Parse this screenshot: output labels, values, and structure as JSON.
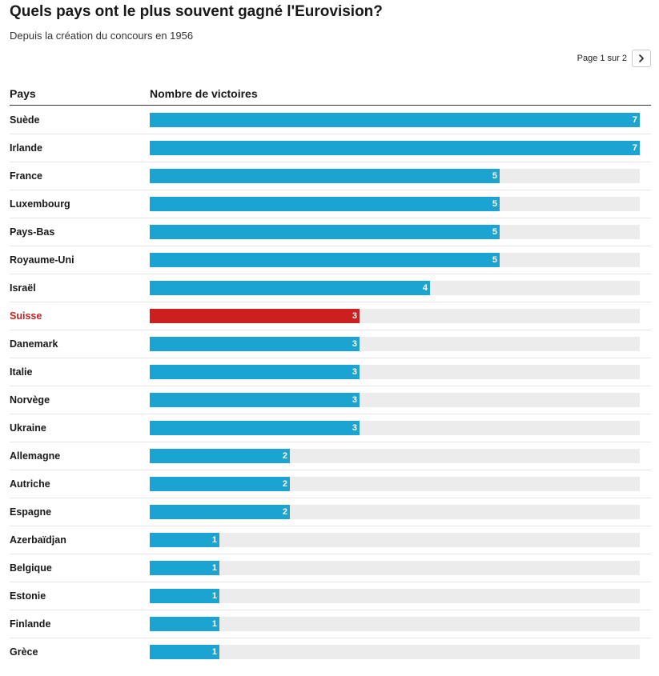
{
  "header": {
    "title": "Quels pays ont le plus souvent gagné l'Eurovision?",
    "subtitle": "Depuis la création du concours en 1956"
  },
  "pager": {
    "label": "Page 1 sur 2",
    "next_icon": "chevron-right-icon"
  },
  "table": {
    "col_country": "Pays",
    "col_value": "Nombre de victoires"
  },
  "colors": {
    "bar": "#1ba3d2",
    "highlight": "#cc1f1f",
    "track": "#ececec"
  },
  "chart_data": {
    "type": "bar",
    "orientation": "horizontal",
    "title": "Quels pays ont le plus souvent gagné l'Eurovision?",
    "subtitle": "Depuis la création du concours en 1956",
    "xlabel": "Nombre de victoires",
    "ylabel": "Pays",
    "xlim": [
      0,
      7
    ],
    "highlighted": "Suisse",
    "categories": [
      "Suède",
      "Irlande",
      "France",
      "Luxembourg",
      "Pays-Bas",
      "Royaume-Uni",
      "Israël",
      "Suisse",
      "Danemark",
      "Italie",
      "Norvège",
      "Ukraine",
      "Allemagne",
      "Autriche",
      "Espagne",
      "Azerbaïdjan",
      "Belgique",
      "Estonie",
      "Finlande",
      "Grèce"
    ],
    "values": [
      7,
      7,
      5,
      5,
      5,
      5,
      4,
      3,
      3,
      3,
      3,
      3,
      2,
      2,
      2,
      1,
      1,
      1,
      1,
      1
    ]
  }
}
